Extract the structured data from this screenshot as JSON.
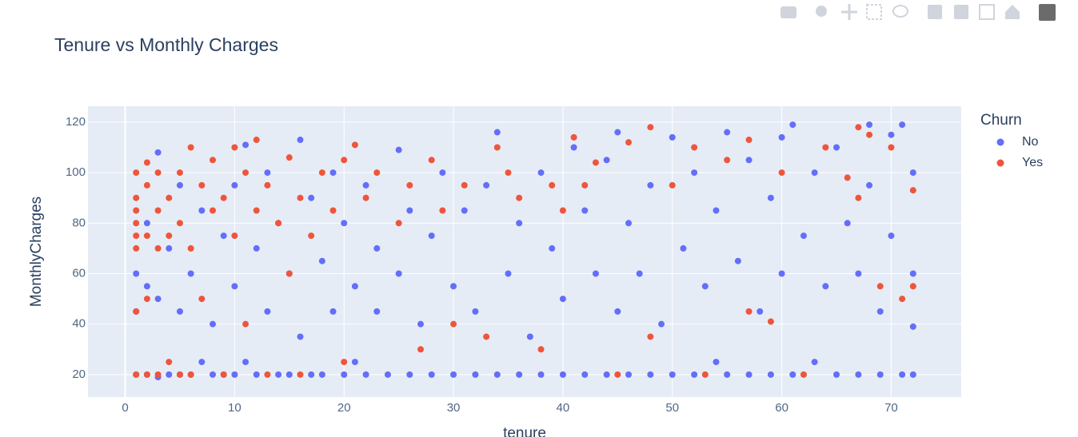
{
  "chart_data": {
    "type": "scatter",
    "title": "Tenure vs Monthly Charges",
    "x_label": "tenure",
    "y_label": "MonthlyCharges",
    "legend_title": "Churn",
    "legend": "right",
    "grid": true,
    "xlim": [
      -3.4,
      76.4
    ],
    "ylim": [
      11.1,
      126.3
    ],
    "xticks": [
      0,
      10,
      20,
      30,
      40,
      50,
      60,
      70
    ],
    "yticks": [
      20,
      40,
      60,
      80,
      100,
      120
    ],
    "series": [
      {
        "name": "No",
        "color": "#636efa",
        "x": [
          1,
          1,
          1,
          2,
          2,
          2,
          3,
          3,
          3,
          4,
          4,
          5,
          5,
          5,
          6,
          6,
          7,
          7,
          8,
          8,
          9,
          9,
          10,
          10,
          10,
          11,
          11,
          12,
          12,
          13,
          13,
          14,
          14,
          15,
          15,
          16,
          16,
          17,
          17,
          18,
          18,
          19,
          19,
          20,
          20,
          21,
          21,
          22,
          22,
          23,
          23,
          24,
          25,
          25,
          26,
          26,
          27,
          28,
          28,
          29,
          30,
          30,
          31,
          32,
          32,
          33,
          34,
          34,
          35,
          36,
          36,
          37,
          38,
          38,
          39,
          40,
          40,
          41,
          42,
          42,
          43,
          44,
          44,
          45,
          45,
          46,
          46,
          47,
          48,
          48,
          49,
          50,
          50,
          51,
          52,
          52,
          53,
          54,
          54,
          55,
          55,
          56,
          57,
          57,
          58,
          59,
          59,
          60,
          60,
          61,
          61,
          62,
          63,
          63,
          64,
          65,
          65,
          66,
          67,
          67,
          68,
          68,
          69,
          69,
          70,
          70,
          71,
          71,
          72,
          72,
          72,
          72
        ],
        "y": [
          20,
          45,
          60,
          20,
          55,
          80,
          19,
          108,
          50,
          20,
          70,
          20,
          45,
          95,
          20,
          60,
          25,
          85,
          20,
          40,
          20,
          75,
          20,
          55,
          95,
          25,
          111,
          20,
          70,
          45,
          100,
          20,
          80,
          20,
          60,
          113,
          35,
          20,
          90,
          20,
          65,
          45,
          100,
          20,
          80,
          25,
          55,
          20,
          95,
          45,
          70,
          20,
          109,
          60,
          20,
          85,
          40,
          20,
          75,
          100,
          20,
          55,
          85,
          20,
          45,
          95,
          116,
          20,
          60,
          20,
          80,
          35,
          20,
          100,
          70,
          20,
          50,
          110,
          20,
          85,
          60,
          20,
          105,
          116,
          45,
          20,
          80,
          60,
          20,
          95,
          40,
          114,
          20,
          70,
          20,
          100,
          55,
          25,
          85,
          116,
          20,
          65,
          20,
          105,
          45,
          20,
          90,
          114,
          60,
          119,
          20,
          75,
          25,
          100,
          55,
          20,
          110,
          80,
          20,
          60,
          119,
          95,
          20,
          45,
          115,
          75,
          119,
          20,
          100,
          60,
          20,
          39
        ]
      },
      {
        "name": "Yes",
        "color": "#ef553b",
        "x": [
          1,
          1,
          1,
          1,
          1,
          1,
          1,
          1,
          2,
          2,
          2,
          2,
          2,
          3,
          3,
          3,
          3,
          4,
          4,
          4,
          5,
          5,
          5,
          6,
          6,
          6,
          7,
          7,
          8,
          8,
          9,
          9,
          10,
          10,
          11,
          11,
          12,
          12,
          13,
          13,
          14,
          15,
          15,
          16,
          16,
          17,
          18,
          19,
          20,
          20,
          21,
          22,
          23,
          25,
          26,
          27,
          28,
          29,
          30,
          31,
          33,
          34,
          35,
          36,
          38,
          39,
          40,
          41,
          42,
          43,
          45,
          46,
          48,
          48,
          50,
          52,
          53,
          55,
          57,
          57,
          59,
          60,
          62,
          64,
          66,
          67,
          67,
          68,
          69,
          70,
          71,
          72,
          72
        ],
        "y": [
          20,
          45,
          70,
          75,
          80,
          85,
          90,
          100,
          20,
          50,
          75,
          95,
          104,
          20,
          70,
          85,
          100,
          25,
          75,
          90,
          20,
          80,
          100,
          110,
          70,
          20,
          95,
          50,
          85,
          105,
          20,
          90,
          110,
          75,
          100,
          40,
          113,
          85,
          95,
          20,
          80,
          106,
          60,
          20,
          90,
          75,
          100,
          85,
          105,
          25,
          111,
          90,
          100,
          80,
          95,
          30,
          105,
          85,
          40,
          95,
          35,
          110,
          100,
          90,
          30,
          95,
          85,
          114,
          95,
          104,
          20,
          112,
          118,
          35,
          95,
          110,
          20,
          105,
          113,
          45,
          41,
          100,
          20,
          110,
          98,
          118,
          90,
          115,
          55,
          110,
          50,
          55,
          93
        ]
      }
    ]
  }
}
